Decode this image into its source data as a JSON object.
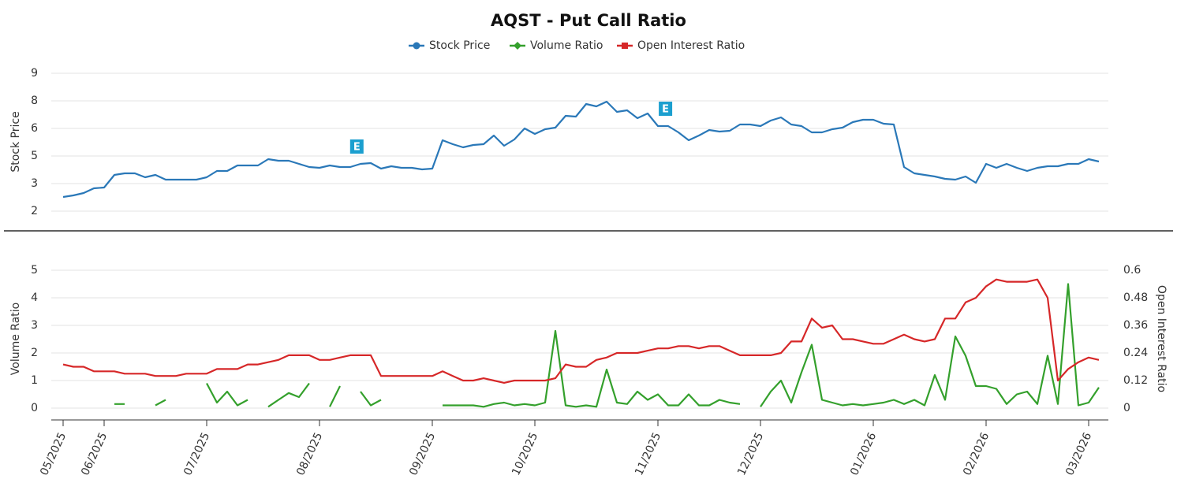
{
  "chart_data": [
    {
      "type": "line",
      "title": "AQST - Put Call Ratio",
      "ylabel": "Stock Price",
      "ylim": [
        2,
        9
      ],
      "yticks": [
        2,
        {
          "value": 3.4,
          "label": "3"
        },
        {
          "value": 4.8,
          "label": "5"
        },
        {
          "value": 6.2,
          "label": "6"
        },
        {
          "value": 7.6,
          "label": "8"
        },
        9
      ],
      "grid": true,
      "annotations": [
        "E",
        "E"
      ],
      "series": [
        {
          "name": "Stock Price",
          "color": "#2a78b8",
          "marker": "circle",
          "values": [
            2.72,
            2.8,
            2.92,
            3.16,
            3.2,
            3.84,
            3.92,
            3.92,
            3.72,
            3.84,
            3.6,
            3.6,
            3.6,
            3.6,
            3.72,
            4.04,
            4.04,
            4.32,
            4.32,
            4.32,
            4.64,
            4.56,
            4.56,
            4.4,
            4.24,
            4.2,
            4.32,
            4.24,
            4.24,
            4.4,
            4.44,
            4.16,
            4.28,
            4.2,
            4.2,
            4.12,
            4.16,
            5.6,
            5.4,
            5.24,
            5.36,
            5.4,
            5.84,
            5.32,
            5.64,
            6.2,
            5.92,
            6.16,
            6.24,
            6.84,
            6.8,
            7.44,
            7.32,
            7.56,
            7.04,
            7.12,
            6.72,
            6.96,
            6.32,
            6.32,
            6,
            5.6,
            5.84,
            6.12,
            6.04,
            6.08,
            6.4,
            6.4,
            6.32,
            6.6,
            6.76,
            6.4,
            6.32,
            6,
            6,
            6.16,
            6.24,
            6.52,
            6.64,
            6.64,
            6.44,
            6.4,
            4.24,
            3.92,
            3.84,
            3.76,
            3.64,
            3.6,
            3.76,
            3.44,
            4.4,
            4.2,
            4.4,
            4.2,
            4.04,
            4.2,
            4.28,
            4.28,
            4.4,
            4.4,
            4.64,
            4.52
          ]
        }
      ]
    },
    {
      "type": "line",
      "ylabel": "Volume Ratio",
      "y2label": "Open Interest Ratio",
      "ylim": [
        0,
        5
      ],
      "yticks": [
        0,
        1,
        2,
        3,
        4,
        5
      ],
      "y2lim": [
        0,
        0.6
      ],
      "y2ticks": [
        0,
        0.12,
        0.24,
        0.36,
        0.48,
        0.6
      ],
      "grid": true,
      "categories": [
        "05/2025",
        null,
        null,
        null,
        "06/2025",
        null,
        null,
        null,
        null,
        null,
        null,
        null,
        null,
        null,
        "07/2025",
        null,
        null,
        null,
        null,
        null,
        null,
        null,
        null,
        null,
        null,
        "08/2025",
        null,
        null,
        null,
        null,
        null,
        null,
        null,
        null,
        null,
        null,
        "09/2025",
        null,
        null,
        null,
        null,
        null,
        null,
        null,
        null,
        null,
        "10/2025",
        null,
        null,
        null,
        null,
        null,
        null,
        null,
        null,
        null,
        null,
        null,
        "11/2025",
        null,
        null,
        null,
        null,
        null,
        null,
        null,
        null,
        null,
        "12/2025",
        null,
        null,
        null,
        null,
        null,
        null,
        null,
        null,
        null,
        null,
        "01/2026",
        null,
        null,
        null,
        null,
        null,
        null,
        null,
        null,
        null,
        null,
        "02/2026",
        null,
        null,
        null,
        null,
        null,
        null,
        null,
        null,
        null,
        "03/2026",
        null
      ],
      "series": [
        {
          "name": "Volume Ratio",
          "color": "#34a02c",
          "marker": "diamond",
          "values": [
            null,
            null,
            null,
            null,
            null,
            0.15,
            0.15,
            null,
            null,
            0.1,
            0.3,
            null,
            null,
            null,
            0.9,
            0.2,
            0.6,
            0.1,
            0.3,
            null,
            0.05,
            0.3,
            0.55,
            0.4,
            0.9,
            null,
            0.05,
            0.8,
            null,
            0.6,
            0.1,
            0.3,
            null,
            null,
            null,
            null,
            null,
            0.1,
            0.1,
            0.1,
            0.1,
            0.05,
            0.15,
            0.2,
            0.1,
            0.15,
            0.1,
            0.2,
            2.8,
            0.1,
            0.05,
            0.1,
            0.05,
            1.4,
            0.2,
            0.15,
            0.6,
            0.3,
            0.5,
            0.1,
            0.1,
            0.5,
            0.1,
            0.1,
            0.3,
            0.2,
            0.15,
            null,
            0.05,
            0.6,
            1.0,
            0.2,
            1.3,
            2.3,
            0.3,
            0.2,
            0.1,
            0.15,
            0.1,
            0.15,
            0.2,
            0.3,
            0.15,
            0.3,
            0.1,
            1.2,
            0.3,
            2.6,
            1.9,
            0.8,
            0.8,
            0.7,
            0.15,
            0.5,
            0.6,
            0.15,
            1.9,
            0.15,
            4.5,
            0.1,
            0.2,
            0.75
          ]
        },
        {
          "name": "Open Interest Ratio",
          "color": "#d62728",
          "marker": "square",
          "axis": "y2",
          "values": [
            0.19,
            0.18,
            0.18,
            0.16,
            0.16,
            0.16,
            0.15,
            0.15,
            0.15,
            0.14,
            0.14,
            0.14,
            0.15,
            0.15,
            0.15,
            0.17,
            0.17,
            0.17,
            0.19,
            0.19,
            0.2,
            0.21,
            0.23,
            0.23,
            0.23,
            0.21,
            0.21,
            0.22,
            0.23,
            0.23,
            0.23,
            0.14,
            0.14,
            0.14,
            0.14,
            0.14,
            0.14,
            0.16,
            0.14,
            0.12,
            0.12,
            0.13,
            0.12,
            0.11,
            0.12,
            0.12,
            0.12,
            0.12,
            0.13,
            0.19,
            0.18,
            0.18,
            0.21,
            0.22,
            0.24,
            0.24,
            0.24,
            0.25,
            0.26,
            0.26,
            0.27,
            0.27,
            0.26,
            0.27,
            0.27,
            0.25,
            0.23,
            0.23,
            0.23,
            0.23,
            0.24,
            0.29,
            0.29,
            0.39,
            0.35,
            0.36,
            0.3,
            0.3,
            0.29,
            0.28,
            0.28,
            0.3,
            0.32,
            0.3,
            0.29,
            0.3,
            0.39,
            0.39,
            0.46,
            0.48,
            0.53,
            0.56,
            0.55,
            0.55,
            0.55,
            0.56,
            0.48,
            0.12,
            0.17,
            0.2,
            0.22,
            0.21
          ]
        }
      ]
    }
  ]
}
